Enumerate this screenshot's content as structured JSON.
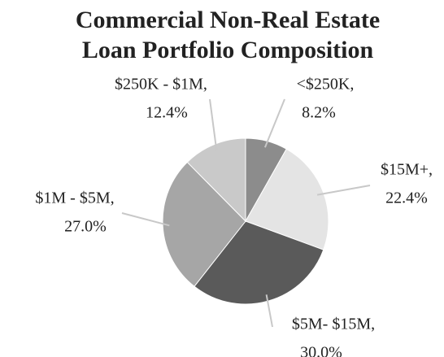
{
  "chart_data": {
    "type": "pie",
    "title": [
      "Commercial Non-Real Estate",
      "Loan Portfolio Composition"
    ],
    "categories": [
      "<$250K,",
      "$15M+,",
      "$5M- $15M,",
      "$1M - $5M,",
      "$250K - $1M,"
    ],
    "values": [
      8.2,
      22.4,
      30.0,
      27.0,
      12.4
    ],
    "value_labels": [
      "8.2%",
      "22.4%",
      "30.0%",
      "27.0%",
      "12.4%"
    ],
    "colors": [
      "#8c8c8c",
      "#e4e4e4",
      "#5a5a5a",
      "#a6a6a6",
      "#c9c9c9"
    ]
  }
}
